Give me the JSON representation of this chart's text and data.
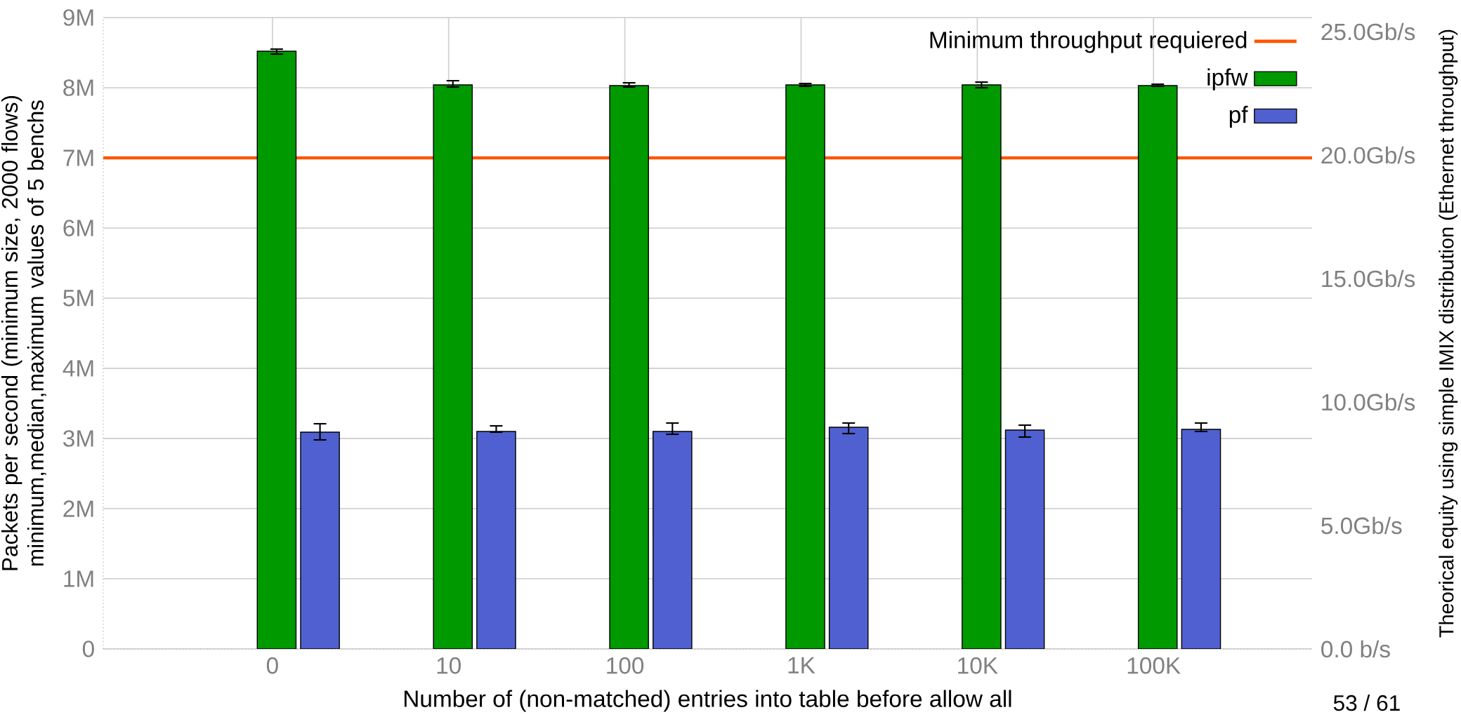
{
  "chart_data": {
    "type": "bar",
    "xlabel": "Number of (non-matched) entries into table before allow all",
    "ylabel": "Packets per second (minimum size, 2000 flows) minimum,median,maximum values of 5 benchs",
    "y2label": "Theorical equity using simple IMIX distribution (Ethernet throughput)",
    "categories": [
      "0",
      "10",
      "100",
      "1K",
      "10K",
      "100K"
    ],
    "series": [
      {
        "name": "ipfw",
        "color": "#009900",
        "values": [
          8.52,
          8.04,
          8.03,
          8.04,
          8.04,
          8.03
        ],
        "errors": [
          [
            8.48,
            8.55
          ],
          [
            8.01,
            8.1
          ],
          [
            8.01,
            8.07
          ],
          [
            8.02,
            8.06
          ],
          [
            8.0,
            8.08
          ],
          [
            8.02,
            8.05
          ]
        ]
      },
      {
        "name": "pf",
        "color": "#5060d0",
        "values": [
          3.09,
          3.1,
          3.1,
          3.16,
          3.12,
          3.13
        ],
        "errors": [
          [
            2.98,
            3.21
          ],
          [
            3.09,
            3.18
          ],
          [
            3.06,
            3.22
          ],
          [
            3.07,
            3.22
          ],
          [
            3.02,
            3.19
          ],
          [
            3.1,
            3.22
          ]
        ]
      }
    ],
    "ylim": [
      0,
      9
    ],
    "yticks": [
      0,
      {
        "value": 1,
        "label": "1M"
      },
      {
        "value": 2,
        "label": "2M"
      },
      {
        "value": 3,
        "label": "3M"
      },
      {
        "value": 4,
        "label": "4M"
      },
      {
        "value": 5,
        "label": "5M"
      },
      {
        "value": 6,
        "label": "6M"
      },
      {
        "value": 7,
        "label": "7M"
      },
      {
        "value": 8,
        "label": "8M"
      },
      {
        "value": 9,
        "label": "9M"
      }
    ],
    "y2lim": [
      0,
      25.57
    ],
    "y2ticks": [
      {
        "value": 0,
        "label": "0.0 b/s"
      },
      {
        "value": 5,
        "label": "5.0Gb/s"
      },
      {
        "value": 10,
        "label": "10.0Gb/s"
      },
      {
        "value": 15,
        "label": "15.0Gb/s"
      },
      {
        "value": 20,
        "label": "20.0Gb/s"
      },
      {
        "value": 25,
        "label": "25.0Gb/s"
      }
    ],
    "ref_lines": [
      {
        "axis": "y",
        "value": 7,
        "label": "Minimum throughput requiered",
        "color": "#ff5500"
      }
    ],
    "legend": "top right",
    "grid": true,
    "annotations": [
      "53 / 61"
    ]
  }
}
